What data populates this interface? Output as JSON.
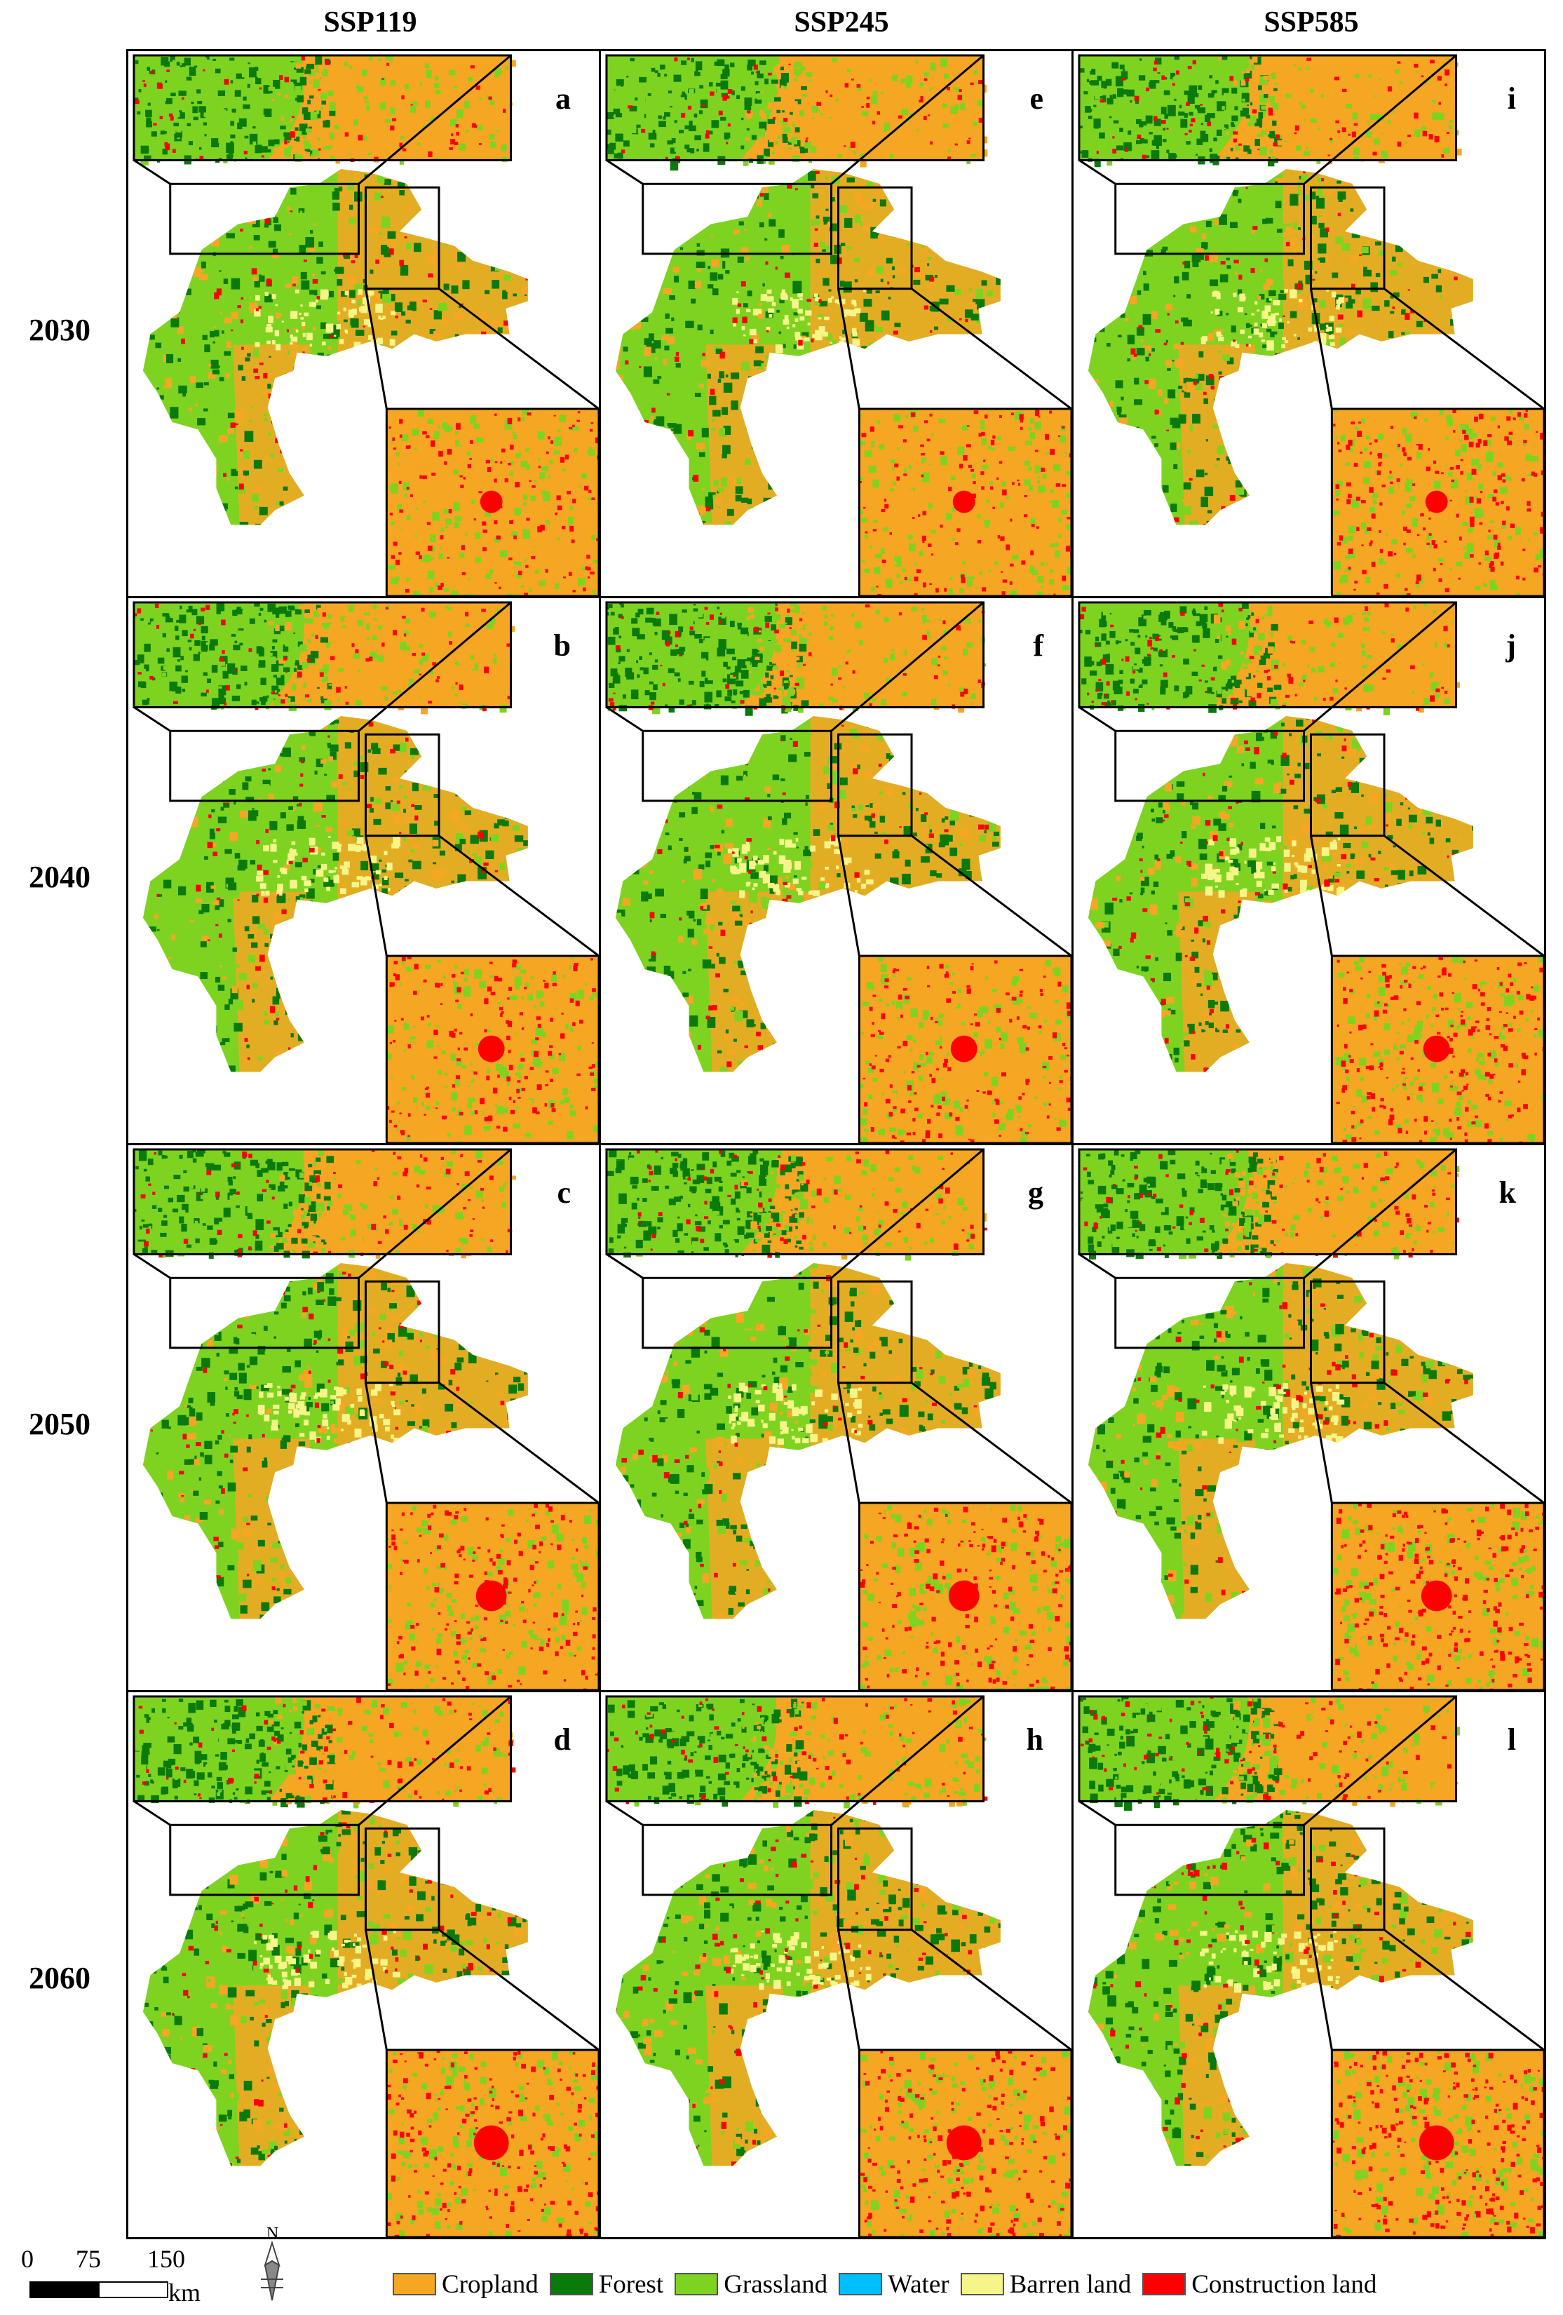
{
  "columns": [
    "SSP119",
    "SSP245",
    "SSP585"
  ],
  "rows": [
    "2030",
    "2040",
    "2050",
    "2060"
  ],
  "panel_letters": [
    [
      "a",
      "e",
      "i"
    ],
    [
      "b",
      "f",
      "j"
    ],
    [
      "c",
      "g",
      "k"
    ],
    [
      "d",
      "h",
      "l"
    ]
  ],
  "colors": {
    "cropland": "#f5a623",
    "forest": "#0a7a0a",
    "grassland": "#7ed321",
    "water": "#00bfff",
    "barren": "#f5f58a",
    "construction": "#ff0000"
  },
  "legend": [
    {
      "label": "Cropland",
      "color": "#f5a623"
    },
    {
      "label": "Forest",
      "color": "#0a7a0a"
    },
    {
      "label": "Grassland",
      "color": "#7ed321"
    },
    {
      "label": "Water",
      "color": "#00bfff"
    },
    {
      "label": "Barren land",
      "color": "#f5f58a"
    },
    {
      "label": "Construction land",
      "color": "#ff0000"
    }
  ],
  "scalebar": {
    "ticks": [
      "0",
      "75",
      "150"
    ],
    "unit": "km"
  },
  "north_arrow": {
    "label": "N",
    "icon": "north-arrow-icon"
  }
}
